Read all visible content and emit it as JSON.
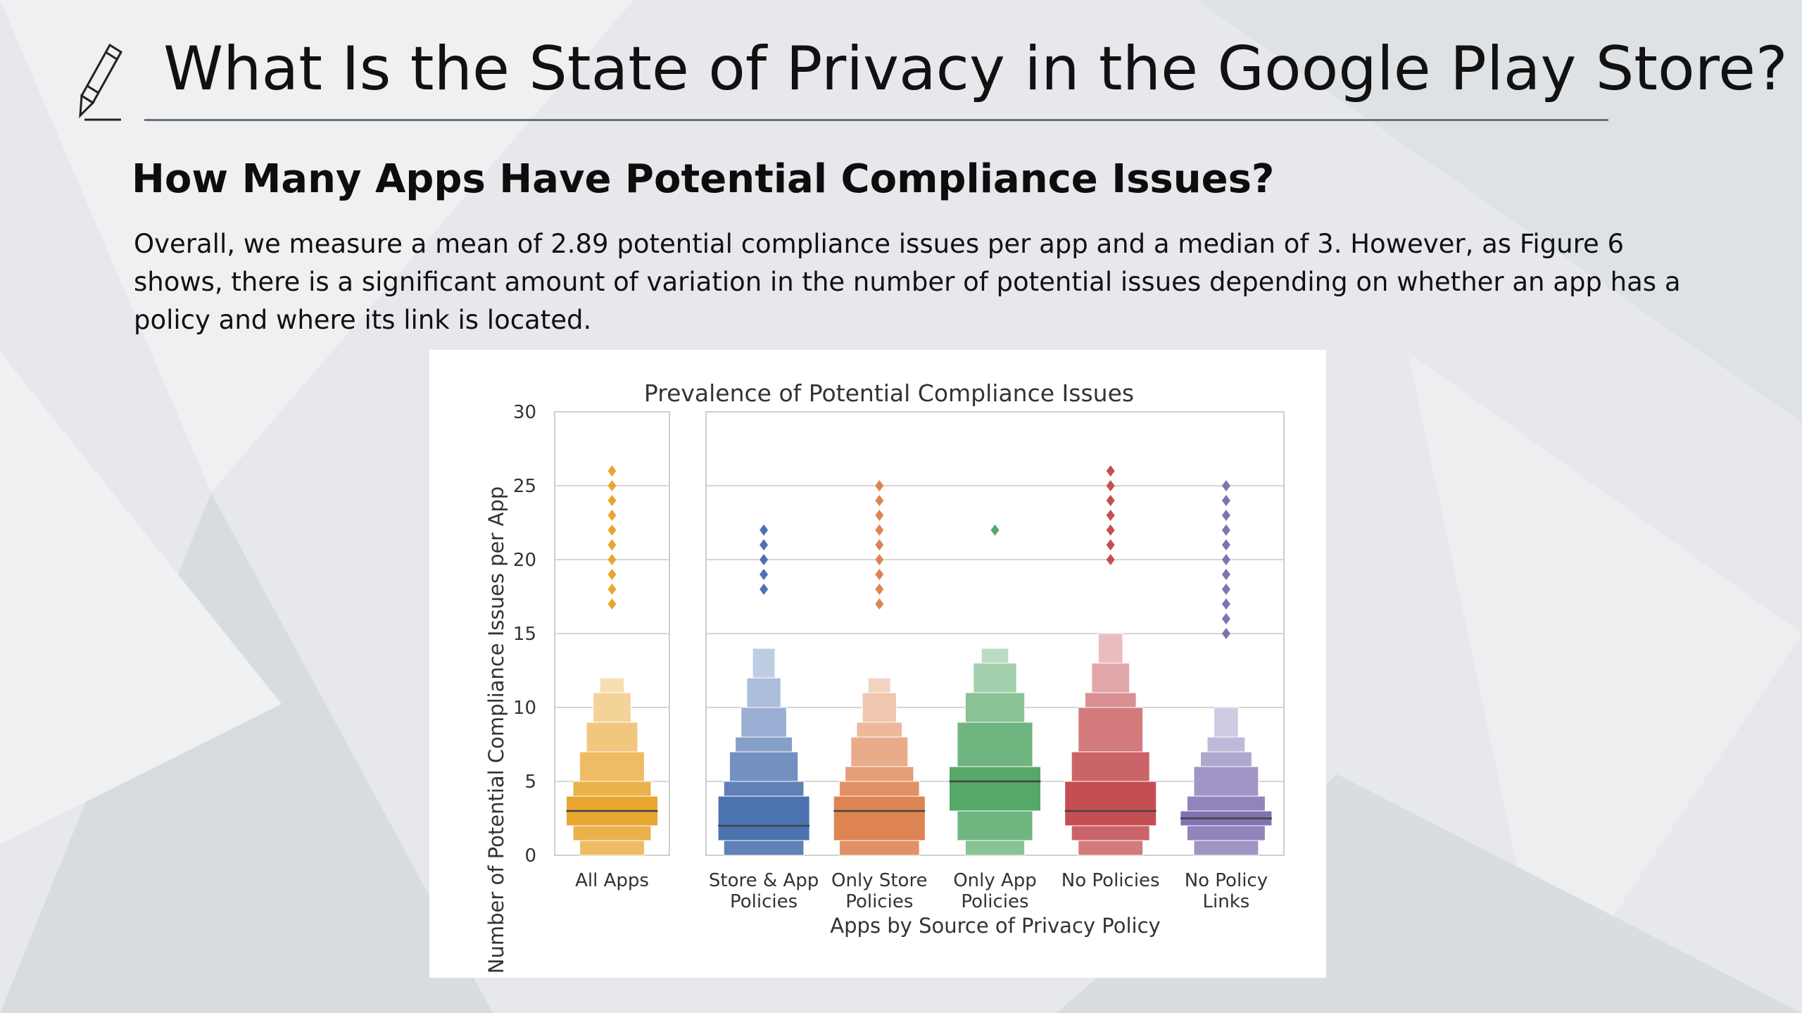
{
  "slide": {
    "title": "What Is the State of Privacy in the Google Play Store?",
    "heading": "How Many Apps Have Potential Compliance Issues?",
    "body": " Overall, we measure a mean of 2.89 potential compliance issues per app and a median of 3. However, as Figure 6 shows, there is a significant amount of variation in the number of potential issues depending on whether an app has a policy and where its link is located."
  },
  "chart_data": {
    "type": "boxen",
    "title": "Prevalence of Potential Compliance Issues",
    "xlabel": "Apps by Source of Privacy Policy",
    "ylabel": "Number of Potential Compliance Issues per App",
    "ylim": [
      0,
      30
    ],
    "yticks": [
      0,
      5,
      10,
      15,
      20,
      25,
      30
    ],
    "grid": true,
    "panels": [
      {
        "name": "left",
        "categories": [
          "All Apps"
        ]
      },
      {
        "name": "right",
        "categories": [
          "Store & App Policies",
          "Only Store Policies",
          "Only App Policies",
          "No Policies",
          "No Policy Links"
        ]
      }
    ],
    "categories": [
      "All Apps",
      "Store & App Policies",
      "Only Store Policies",
      "Only App Policies",
      "No Policies",
      "No Policy Links"
    ],
    "series": [
      {
        "category": "All Apps",
        "color": "#e8a631",
        "median": 3,
        "levels": [
          [
            2,
            4
          ],
          [
            1,
            5
          ],
          [
            0,
            7
          ],
          [
            0,
            9
          ],
          [
            0,
            11
          ],
          [
            0,
            12
          ]
        ],
        "outliers": [
          17,
          18,
          19,
          20,
          21,
          22,
          23,
          24,
          25,
          26
        ]
      },
      {
        "category": "Store & App Policies",
        "color": "#4c72b0",
        "median": 2,
        "levels": [
          [
            1,
            4
          ],
          [
            0,
            5
          ],
          [
            0,
            7
          ],
          [
            0,
            8
          ],
          [
            0,
            10
          ],
          [
            0,
            12
          ],
          [
            0,
            14
          ]
        ],
        "outliers": [
          18,
          19,
          20,
          21,
          22
        ]
      },
      {
        "category": "Only Store Policies",
        "color": "#dd8452",
        "median": 3,
        "levels": [
          [
            1,
            4
          ],
          [
            0,
            5
          ],
          [
            0,
            6
          ],
          [
            0,
            8
          ],
          [
            0,
            9
          ],
          [
            0,
            11
          ],
          [
            0,
            12
          ]
        ],
        "outliers": [
          17,
          18,
          19,
          20,
          21,
          22,
          23,
          24,
          25
        ]
      },
      {
        "category": "Only App Policies",
        "color": "#55a868",
        "median": 5,
        "levels": [
          [
            3,
            6
          ],
          [
            1,
            9
          ],
          [
            0,
            11
          ],
          [
            0,
            13
          ],
          [
            0,
            14
          ]
        ],
        "outliers": [
          22
        ]
      },
      {
        "category": "No Policies",
        "color": "#c44e52",
        "median": 3,
        "levels": [
          [
            2,
            5
          ],
          [
            1,
            7
          ],
          [
            0,
            10
          ],
          [
            0,
            11
          ],
          [
            0,
            13
          ],
          [
            0,
            15
          ]
        ],
        "outliers": [
          20,
          21,
          22,
          23,
          24,
          25,
          26
        ]
      },
      {
        "category": "No Policy Links",
        "color": "#8172b2",
        "median": 2.5,
        "levels": [
          [
            2,
            3
          ],
          [
            1,
            4
          ],
          [
            0,
            6
          ],
          [
            0,
            7
          ],
          [
            0,
            8
          ],
          [
            0,
            10
          ]
        ],
        "outliers": [
          15,
          16,
          17,
          18,
          19,
          20,
          21,
          22,
          23,
          24,
          25
        ]
      }
    ]
  }
}
